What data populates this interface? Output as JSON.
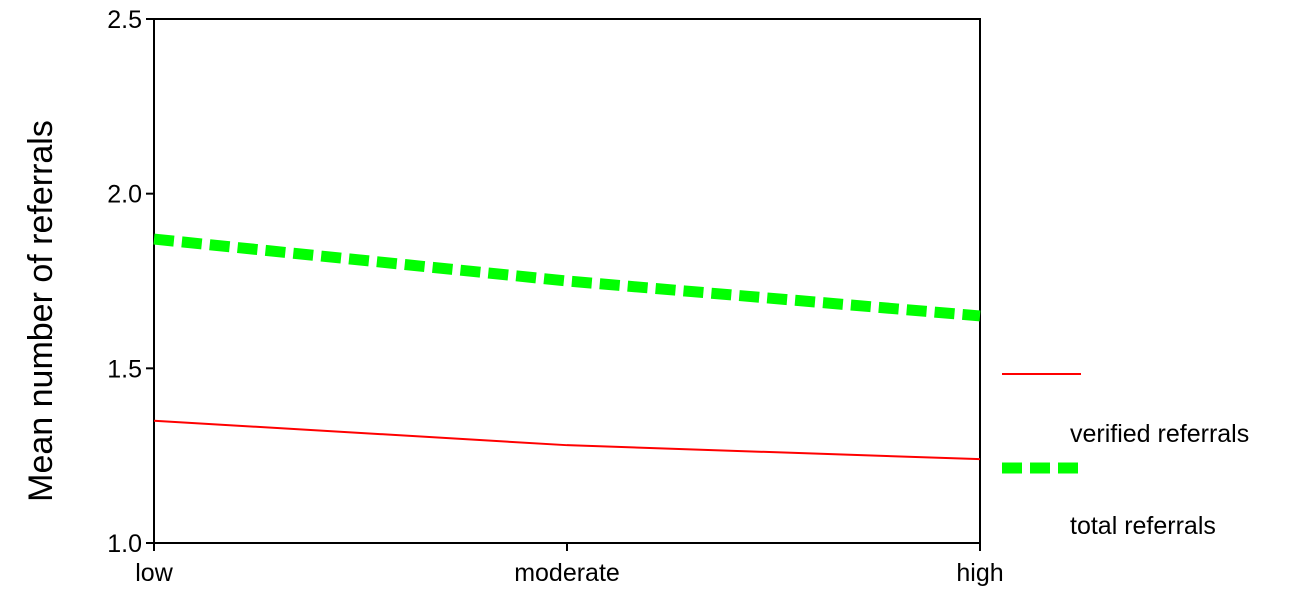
{
  "chart_data": {
    "type": "line",
    "title": "",
    "xlabel": "",
    "ylabel": "Mean number of referrals",
    "categories": [
      "low",
      "moderate",
      "high"
    ],
    "yticks": [
      "1.0",
      "1.5",
      "2.0",
      "2.5"
    ],
    "ylim": [
      1.0,
      2.5
    ],
    "grid": false,
    "legend_position": "right",
    "series": [
      {
        "name": "verified referrals",
        "values": [
          1.35,
          1.28,
          1.24
        ],
        "color": "#ff0000",
        "style": "solid"
      },
      {
        "name": "total referrals",
        "values": [
          1.87,
          1.75,
          1.65
        ],
        "color": "#00ff00",
        "style": "dashed"
      }
    ]
  }
}
